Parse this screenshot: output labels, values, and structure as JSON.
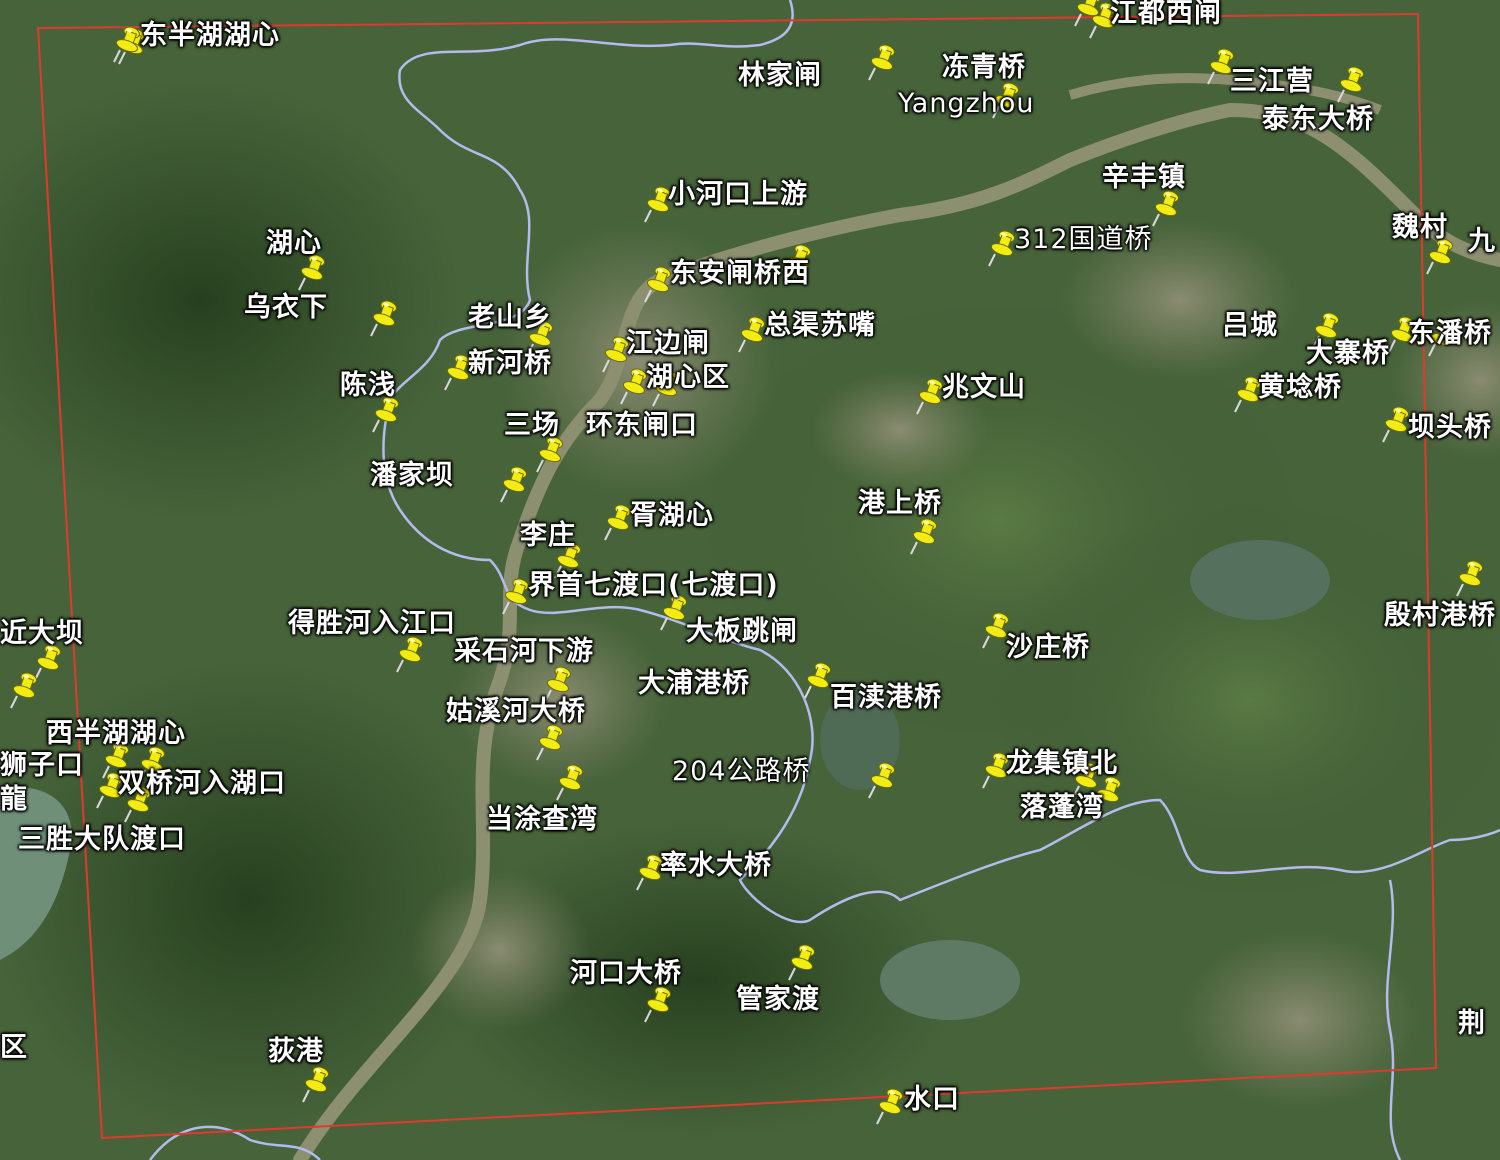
{
  "map": {
    "labels": [
      {
        "id": "dongbanhu",
        "text": "东半湖湖心"
      },
      {
        "id": "linjiazha",
        "text": "林家闸"
      },
      {
        "id": "dongqingqiao",
        "text": "冻青桥"
      },
      {
        "id": "yangzhou",
        "text": "Yangzhou"
      },
      {
        "id": "jiangduxizha",
        "text": "江都西闸"
      },
      {
        "id": "sanjiangying",
        "text": "三江营"
      },
      {
        "id": "taidongdaqiao",
        "text": "泰东大桥"
      },
      {
        "id": "xiaohekou",
        "text": "小河口上游"
      },
      {
        "id": "xinfengzhen",
        "text": "辛丰镇"
      },
      {
        "id": "guodao312",
        "text": "312国道桥"
      },
      {
        "id": "weicun",
        "text": "魏村"
      },
      {
        "id": "jiu",
        "text": "九"
      },
      {
        "id": "huxin",
        "text": "湖心"
      },
      {
        "id": "dongan",
        "text": "东安闸桥西"
      },
      {
        "id": "wuyixia",
        "text": "乌衣下"
      },
      {
        "id": "laoshan",
        "text": "老山乡"
      },
      {
        "id": "zongqu",
        "text": "总渠苏嘴"
      },
      {
        "id": "lvcheng",
        "text": "吕城"
      },
      {
        "id": "dazhaiqiao",
        "text": "大寨桥"
      },
      {
        "id": "dongpan",
        "text": "东潘桥"
      },
      {
        "id": "jiangbianzha",
        "text": "江边闸"
      },
      {
        "id": "xinheqiao",
        "text": "新河桥"
      },
      {
        "id": "chenqian",
        "text": "陈浅"
      },
      {
        "id": "huxinqu",
        "text": "湖心区"
      },
      {
        "id": "zhaowenshan",
        "text": "兆文山"
      },
      {
        "id": "huanglunqiao",
        "text": "黄埝桥"
      },
      {
        "id": "sanchang",
        "text": "三场"
      },
      {
        "id": "huandongzhakou",
        "text": "环东闸口"
      },
      {
        "id": "batouqiao",
        "text": "坝头桥"
      },
      {
        "id": "panjiaba",
        "text": "潘家坝"
      },
      {
        "id": "gangshangqiao",
        "text": "港上桥"
      },
      {
        "id": "xuhuxin",
        "text": "胥湖心"
      },
      {
        "id": "lizhuang",
        "text": "李庄"
      },
      {
        "id": "jieshou",
        "text": "界首七渡口(七渡口)"
      },
      {
        "id": "yincungang",
        "text": "殷村港桥"
      },
      {
        "id": "jindaba",
        "text": "近大坝"
      },
      {
        "id": "desheng",
        "text": "得胜河入江口"
      },
      {
        "id": "dabantiaozha",
        "text": "大板跳闸"
      },
      {
        "id": "shazhuangqiao",
        "text": "沙庄桥"
      },
      {
        "id": "caishihe",
        "text": "采石河下游"
      },
      {
        "id": "dapugang",
        "text": "大浦港桥"
      },
      {
        "id": "baidugang",
        "text": "百渎港桥"
      },
      {
        "id": "gukehe",
        "text": "姑溪河大桥"
      },
      {
        "id": "xibanhu",
        "text": "西半湖湖心"
      },
      {
        "id": "shizikou",
        "text": "狮子口"
      },
      {
        "id": "long",
        "text": "龍"
      },
      {
        "id": "shuangqiaohe",
        "text": "双桥河入湖口"
      },
      {
        "id": "gonglu204",
        "text": "204公路桥"
      },
      {
        "id": "longjizhen",
        "text": "龙集镇北"
      },
      {
        "id": "luopengwan",
        "text": "落蓬湾"
      },
      {
        "id": "dangtu",
        "text": "当涂查湾"
      },
      {
        "id": "shengdadui",
        "text": "三胜大队渡口"
      },
      {
        "id": "lvshui",
        "text": "率水大桥"
      },
      {
        "id": "hekoudaqiao",
        "text": "河口大桥"
      },
      {
        "id": "guanjiadu",
        "text": "管家渡"
      },
      {
        "id": "jing",
        "text": "荆"
      },
      {
        "id": "qu",
        "text": "区"
      },
      {
        "id": "digang",
        "text": "荻港"
      },
      {
        "id": "shuikou",
        "text": "水口"
      }
    ],
    "pin_count": 58
  },
  "colors": {
    "boundary": "#e03a2e",
    "river": "#8b8f6e",
    "admin_line": "#b8bff0",
    "pin": "#f2ec12",
    "label": "#ffffff"
  },
  "icons": {
    "pin": "pushpin-icon"
  }
}
